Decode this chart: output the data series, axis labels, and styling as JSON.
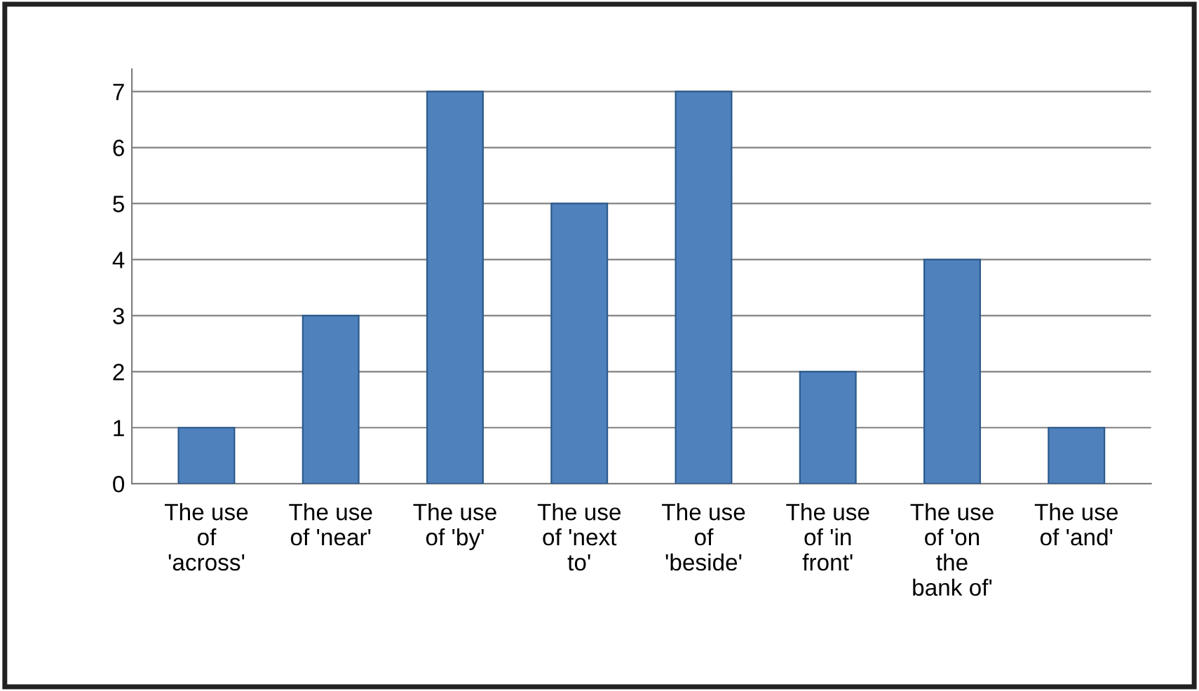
{
  "chart_data": {
    "type": "bar",
    "categories": [
      "The use\nof\n'across'",
      "The use\nof 'near'",
      "The use\nof 'by'",
      "The use\nof 'next\nto'",
      "The use\nof\n'beside'",
      "The use\nof 'in\nfront'",
      "The use\nof 'on\nthe\nbank of'",
      "The use\nof 'and'"
    ],
    "values": [
      1,
      3,
      7,
      5,
      7,
      2,
      4,
      1
    ],
    "color": "#4f81bd",
    "ylim": [
      0,
      7.4
    ],
    "yticks": [
      0,
      1,
      2,
      3,
      4,
      5,
      6,
      7
    ],
    "grid": "y",
    "legend": false
  }
}
